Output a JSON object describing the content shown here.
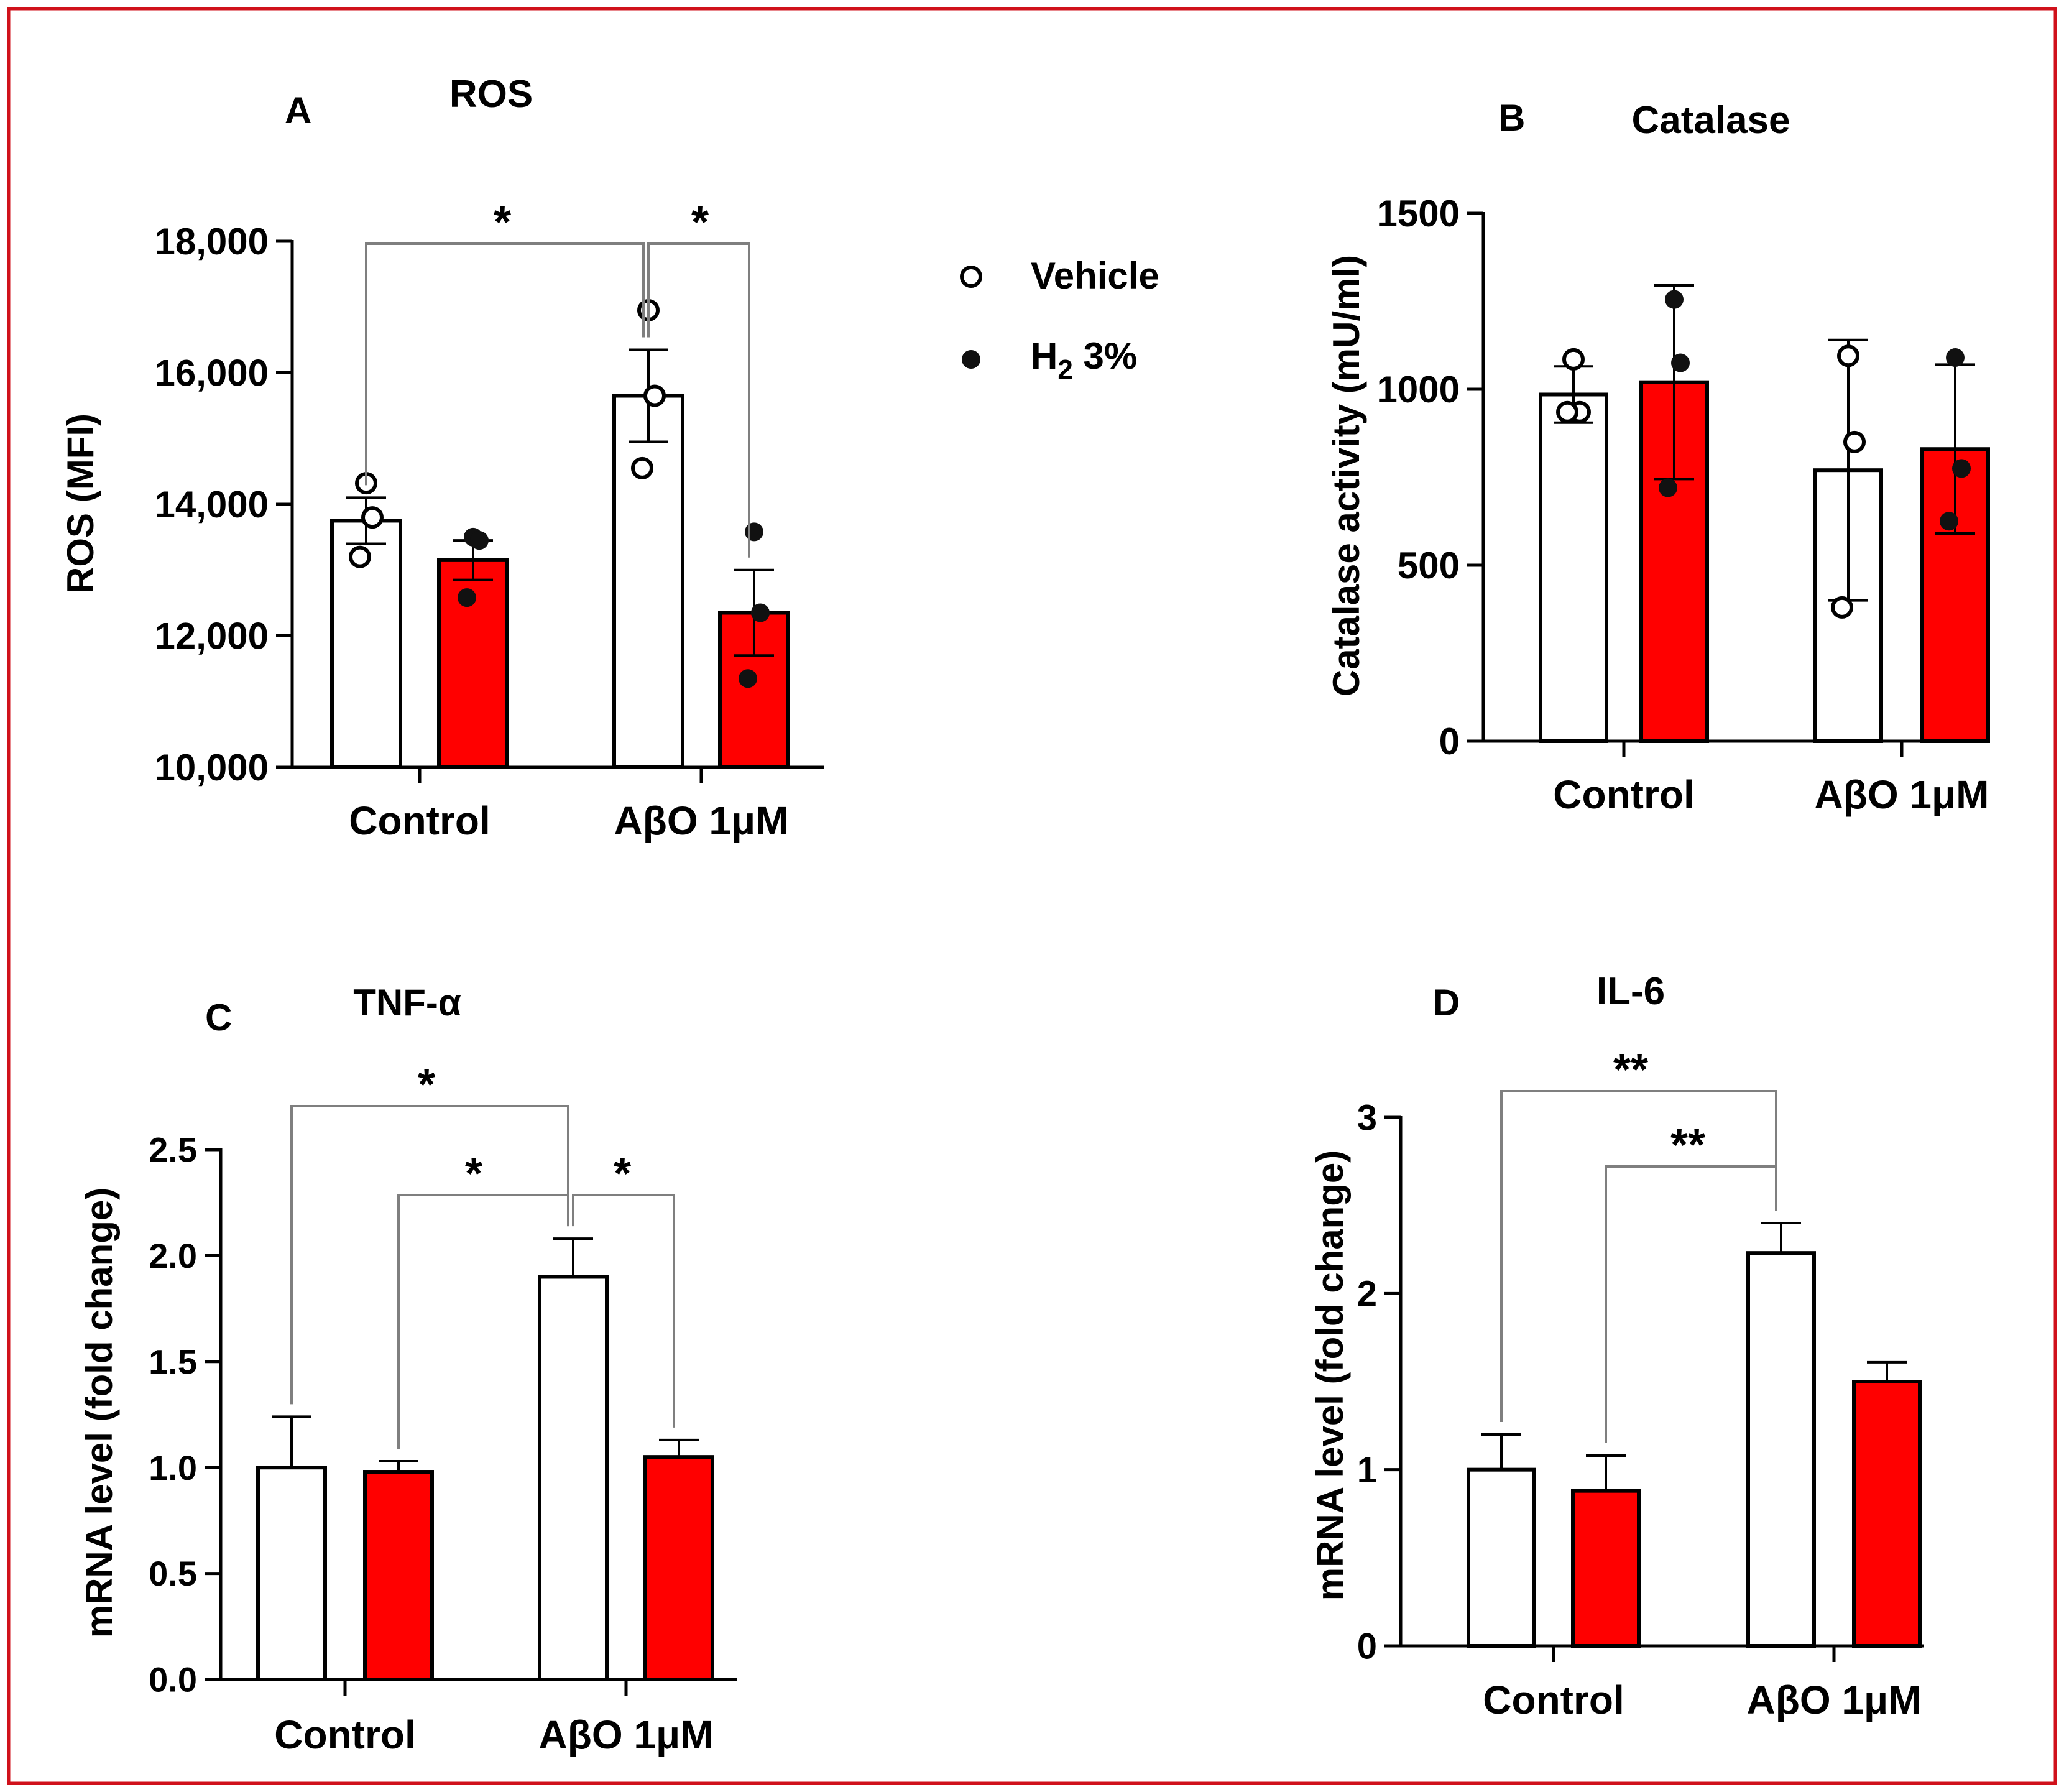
{
  "colors": {
    "frame": "#d0111b",
    "vehicle": "#ffffff",
    "h2": "#ff0000",
    "axis": "#000000",
    "bracket": "#7f7f7f"
  },
  "legend": [
    {
      "name": "Vehicle",
      "label": "Vehicle",
      "marker": "open-circle"
    },
    {
      "name": "H2 3%",
      "label_main": "H",
      "label_sub": "2",
      "label_rest": " 3%",
      "marker": "filled-circle"
    }
  ],
  "chart_data": [
    {
      "panel": "A",
      "type": "bar",
      "title": "ROS",
      "ylabel": "ROS (MFI)",
      "ylim": [
        10000,
        18000
      ],
      "yticks": [
        10000,
        12000,
        14000,
        16000,
        18000
      ],
      "ytick_labels": [
        "10,000",
        "12,000",
        "14,000",
        "16,000",
        "18,000"
      ],
      "categories": [
        "Control",
        "AβO 1μM"
      ],
      "series": [
        {
          "name": "Vehicle",
          "values": [
            13750,
            15650
          ],
          "errors": [
            350,
            700
          ],
          "points": [
            [
              14320,
              13800,
              13200
            ],
            [
              16950,
              15650,
              14550
            ]
          ]
        },
        {
          "name": "H2 3%",
          "values": [
            13150,
            12350
          ],
          "errors": [
            300,
            650
          ],
          "points": [
            [
              13500,
              13450,
              12580
            ],
            [
              13580,
              12350,
              11350
            ]
          ]
        }
      ],
      "significance": [
        {
          "label": "*",
          "from": "Control Vehicle",
          "to": "AβO 1μM Vehicle"
        },
        {
          "label": "*",
          "from": "AβO 1μM Vehicle",
          "to": "AβO 1μM H2 3%"
        }
      ]
    },
    {
      "panel": "B",
      "type": "bar",
      "title": "Catalase",
      "ylabel": "Catalase activity (mU/ml)",
      "ylim": [
        0,
        1500
      ],
      "yticks": [
        0,
        500,
        1000,
        1500
      ],
      "ytick_labels": [
        "0",
        "500",
        "1000",
        "1500"
      ],
      "categories": [
        "Control",
        "AβO 1μM"
      ],
      "series": [
        {
          "name": "Vehicle",
          "values": [
            985,
            770
          ],
          "errors": [
            80,
            370
          ],
          "points": [
            [
              1085,
              935,
              935
            ],
            [
              1095,
              850,
              380
            ]
          ]
        },
        {
          "name": "H2 3%",
          "values": [
            1020,
            830
          ],
          "errors": [
            275,
            240
          ],
          "points": [
            [
              1255,
              1075,
              720
            ],
            [
              1090,
              775,
              625
            ]
          ]
        }
      ],
      "significance": []
    },
    {
      "panel": "C",
      "type": "bar",
      "title": "TNF-α",
      "ylabel": "mRNA level (fold change)",
      "ylim": [
        0,
        2.5
      ],
      "yticks": [
        0,
        0.5,
        1,
        1.5,
        2,
        2.5
      ],
      "ytick_labels": [
        "0.0",
        "0.5",
        "1.0",
        "1.5",
        "2.0",
        "2.5"
      ],
      "categories": [
        "Control",
        "AβO 1μM"
      ],
      "series": [
        {
          "name": "Vehicle",
          "values": [
            1.0,
            1.9
          ],
          "errors": [
            0.24,
            0.18
          ]
        },
        {
          "name": "H2 3%",
          "values": [
            0.98,
            1.05
          ],
          "errors": [
            0.05,
            0.08
          ]
        }
      ],
      "significance": [
        {
          "label": "*",
          "from": "Control Vehicle",
          "to": "AβO 1μM Vehicle"
        },
        {
          "label": "*",
          "from": "Control H2 3%",
          "to": "AβO 1μM Vehicle"
        },
        {
          "label": "*",
          "from": "AβO 1μM Vehicle",
          "to": "AβO 1μM H2 3%"
        }
      ]
    },
    {
      "panel": "D",
      "type": "bar",
      "title": "IL-6",
      "ylabel": "mRNA level (fold change)",
      "ylim": [
        0,
        3
      ],
      "yticks": [
        0,
        1,
        2,
        3
      ],
      "ytick_labels": [
        "0",
        "1",
        "2",
        "3"
      ],
      "categories": [
        "Control",
        "AβO 1μM"
      ],
      "series": [
        {
          "name": "Vehicle",
          "values": [
            1.0,
            2.23
          ],
          "errors": [
            0.2,
            0.17
          ]
        },
        {
          "name": "H2 3%",
          "values": [
            0.88,
            1.5
          ],
          "errors": [
            0.2,
            0.11
          ]
        }
      ],
      "significance": [
        {
          "label": "**",
          "from": "Control Vehicle",
          "to": "AβO 1μM Vehicle"
        },
        {
          "label": "**",
          "from": "Control H2 3%",
          "to": "AβO 1μM Vehicle"
        }
      ]
    }
  ]
}
